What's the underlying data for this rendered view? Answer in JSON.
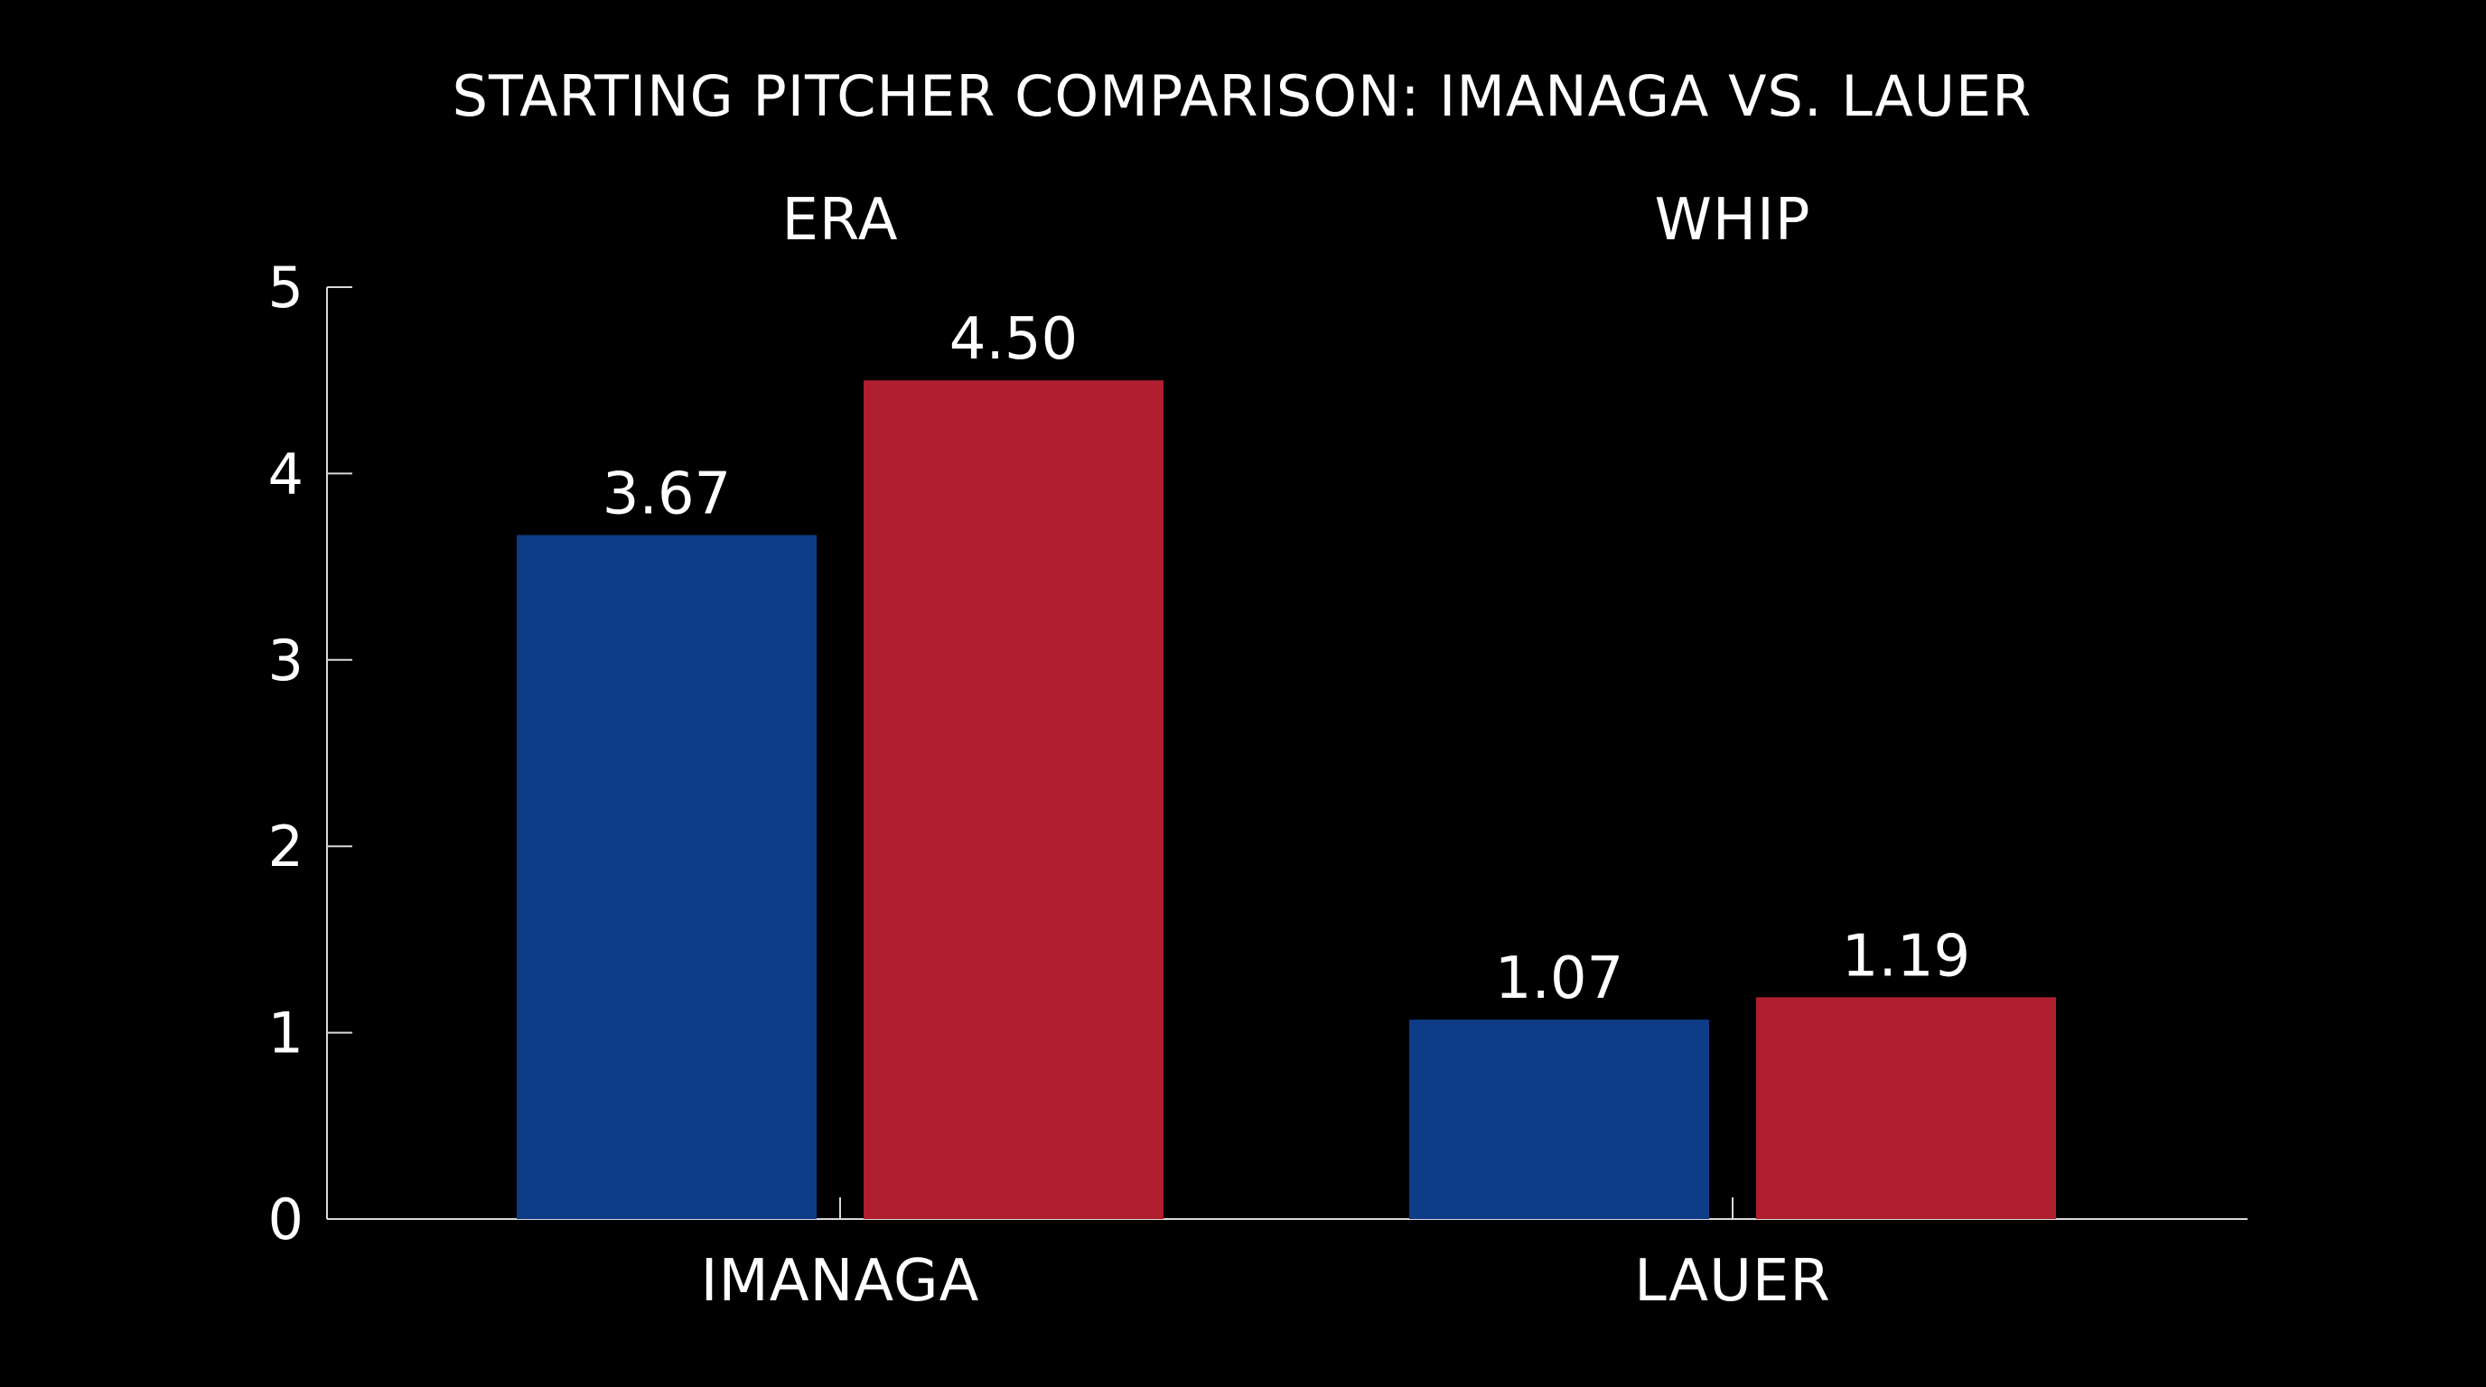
{
  "chart_data": {
    "type": "bar",
    "title": "STARTING PITCHER COMPARISON: IMANAGA VS. LAUER",
    "xlabel": "",
    "ylabel": "",
    "ylim": [
      0,
      5
    ],
    "yticks": [
      "0",
      "1",
      "2",
      "3",
      "4",
      "5"
    ],
    "grid": false,
    "legend": "none",
    "groups": [
      {
        "category": "IMANAGA",
        "metric": "ERA",
        "bars": [
          {
            "value": 3.67,
            "label": "3.67",
            "color": "#0f3c87"
          },
          {
            "value": 4.5,
            "label": "4.50",
            "color": "#af1f2f"
          }
        ]
      },
      {
        "category": "LAUER",
        "metric": "WHIP",
        "bars": [
          {
            "value": 1.07,
            "label": "1.07",
            "color": "#0f3c87"
          },
          {
            "value": 1.19,
            "label": "1.19",
            "color": "#af1f2f"
          }
        ]
      }
    ]
  }
}
